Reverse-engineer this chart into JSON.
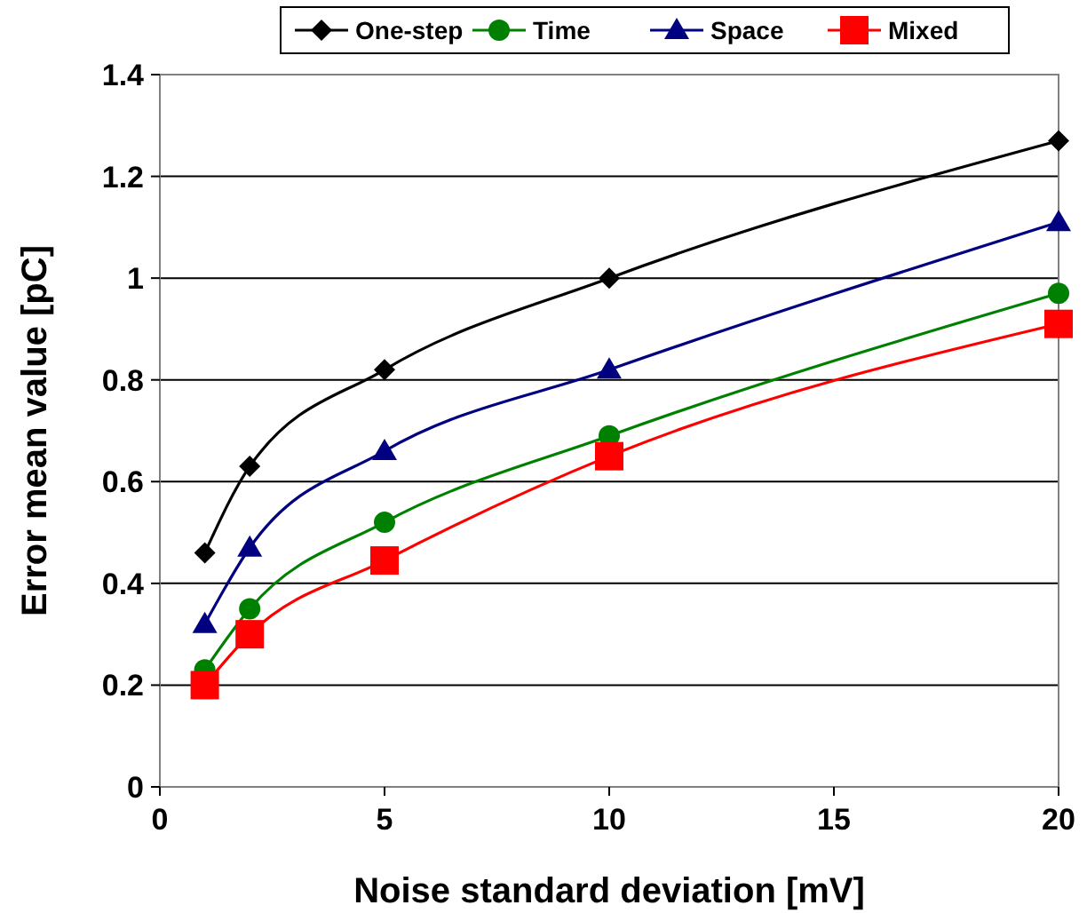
{
  "chart_data": {
    "type": "line",
    "xlabel": "Noise standard deviation [mV]",
    "ylabel": "Error mean value [pC]",
    "x": [
      1,
      2,
      5,
      10,
      20
    ],
    "series": [
      {
        "name": "One-step",
        "color": "#000000",
        "marker": "diamond",
        "values": [
          0.46,
          0.63,
          0.82,
          1.0,
          1.27
        ]
      },
      {
        "name": "Time",
        "color": "#008000",
        "marker": "circle",
        "values": [
          0.23,
          0.35,
          0.52,
          0.69,
          0.97
        ]
      },
      {
        "name": "Space",
        "color": "#000080",
        "marker": "triangle",
        "values": [
          0.32,
          0.47,
          0.66,
          0.82,
          1.11
        ]
      },
      {
        "name": "Mixed",
        "color": "#ff0000",
        "marker": "square",
        "values": [
          0.2,
          0.3,
          0.445,
          0.65,
          0.91
        ]
      }
    ],
    "xlim": [
      0,
      20
    ],
    "xticks": [
      0,
      5,
      10,
      15,
      20
    ],
    "ylim": [
      0,
      1.4
    ],
    "yticks": [
      0,
      0.2,
      0.4,
      0.6,
      0.8,
      1,
      1.2,
      1.4
    ],
    "grid": "y",
    "legend": "top",
    "line_style": "solid"
  }
}
